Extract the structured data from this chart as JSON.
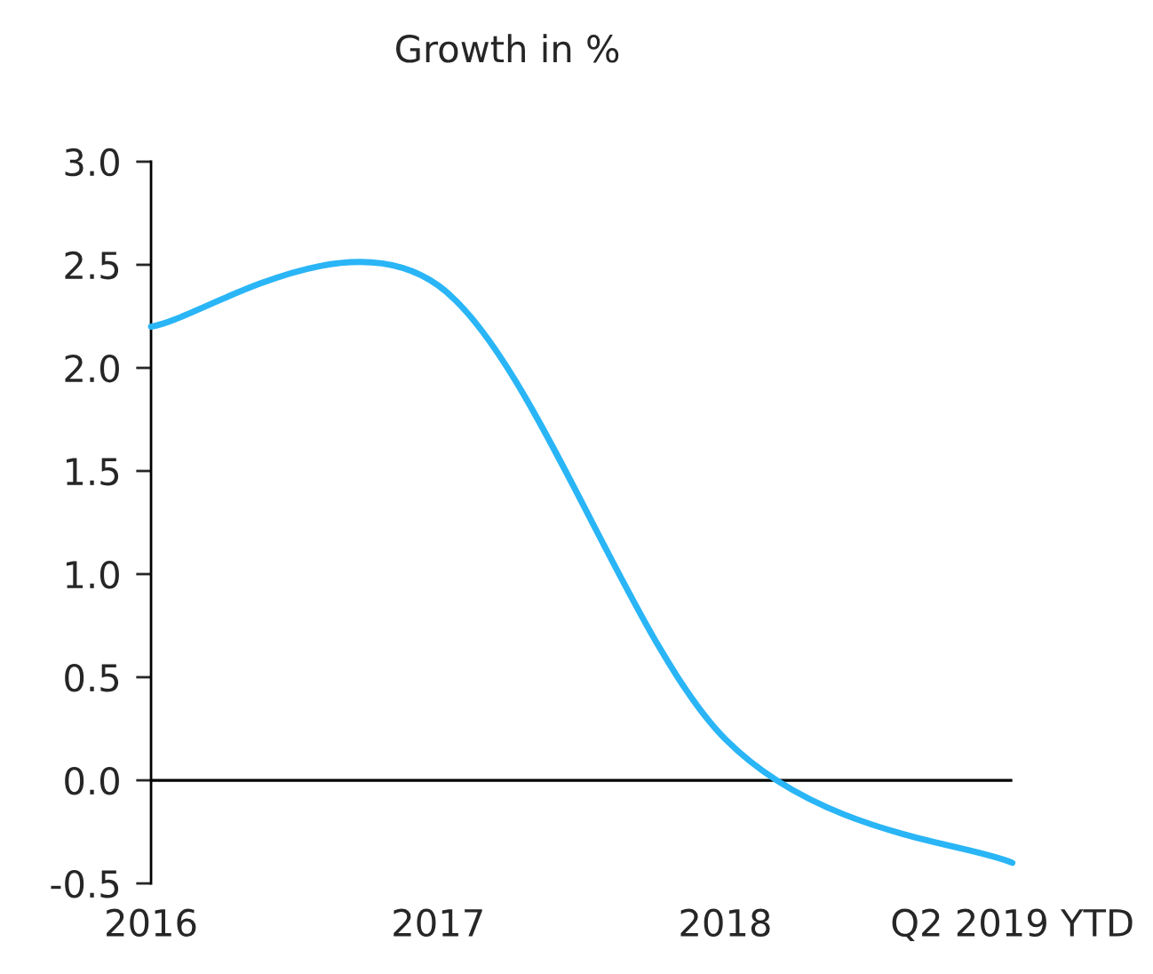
{
  "chart_data": {
    "type": "line",
    "title": "Growth in %",
    "categories": [
      "2016",
      "2017",
      "2018",
      "Q2 2019 YTD"
    ],
    "series": [
      {
        "color": "#29b5f6",
        "values": [
          2.2,
          2.4,
          0.2,
          -0.4
        ]
      }
    ],
    "ylim": [
      -0.5,
      3.0
    ],
    "yticks": [
      {
        "value": -0.5,
        "label": "-0.5"
      },
      {
        "value": 0.0,
        "label": "0.0"
      },
      {
        "value": 0.5,
        "label": "0.5"
      },
      {
        "value": 1.0,
        "label": "1.0"
      },
      {
        "value": 1.5,
        "label": "1.5"
      },
      {
        "value": 2.0,
        "label": "2.0"
      },
      {
        "value": 2.5,
        "label": "2.5"
      },
      {
        "value": 3.0,
        "label": "3.0"
      }
    ],
    "ref_lines": [
      {
        "axis": "y",
        "value": 0,
        "color": "#000000"
      }
    ],
    "grid": false,
    "legend": false
  }
}
